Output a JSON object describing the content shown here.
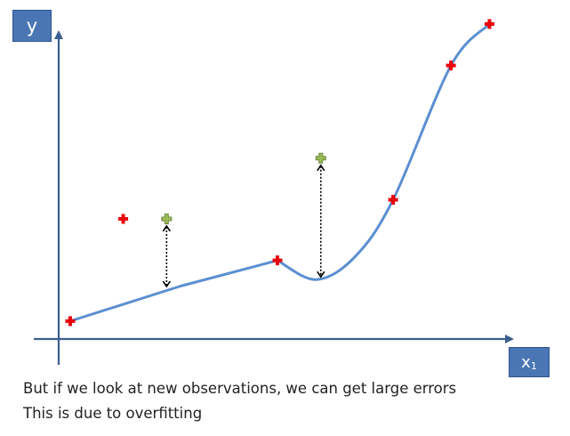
{
  "y_label": "y",
  "x_label": {
    "main": "x",
    "sub": "1"
  },
  "captions": [
    "But if we look at new observations, we can get large errors",
    "This is due to overfitting"
  ],
  "colors": {
    "axis": "#3b5f8f",
    "curve": "#5b8fd1",
    "train_point": "#e8000b",
    "new_point": "#9bbb59",
    "label_box": "#4a77b4"
  },
  "chart_data": {
    "type": "scatter",
    "xlabel": "x1",
    "ylabel": "y",
    "xlim": [
      0,
      100
    ],
    "ylim": [
      0,
      100
    ],
    "series": [
      {
        "role": "training",
        "marker": "red-plus",
        "points": [
          [
            7,
            7
          ],
          [
            18,
            39
          ],
          [
            50,
            26
          ],
          [
            74,
            45
          ],
          [
            86,
            87
          ],
          [
            94,
            100
          ]
        ]
      },
      {
        "role": "new",
        "marker": "green-plus",
        "points": [
          [
            27,
            39
          ],
          [
            59,
            58
          ]
        ]
      }
    ],
    "fit_curve": [
      [
        7,
        7
      ],
      [
        30,
        18
      ],
      [
        50,
        26
      ],
      [
        58,
        20
      ],
      [
        66,
        27
      ],
      [
        74,
        45
      ],
      [
        86,
        87
      ],
      [
        94,
        100
      ]
    ],
    "errors": [
      {
        "x": 27,
        "y_obs": 39,
        "y_fit": 17
      },
      {
        "x": 59,
        "y_obs": 58,
        "y_fit": 20
      }
    ]
  }
}
